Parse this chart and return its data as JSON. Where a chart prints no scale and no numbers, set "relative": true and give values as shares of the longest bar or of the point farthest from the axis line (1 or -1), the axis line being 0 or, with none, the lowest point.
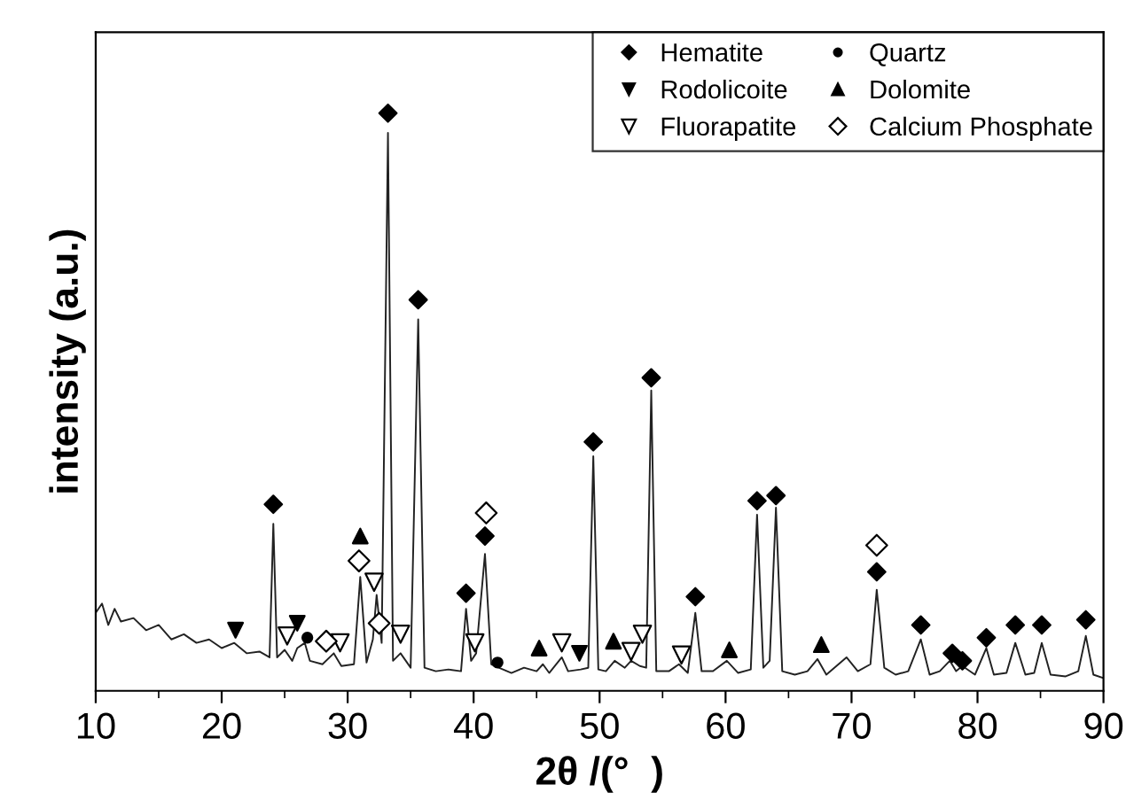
{
  "chart_data": {
    "type": "line",
    "relative": true,
    "xlabel": "2θ /(°  )",
    "ylabel": "intensity (a.u.)",
    "xlim": [
      10,
      90
    ],
    "xticks": [
      10,
      20,
      30,
      40,
      50,
      60,
      70,
      80,
      90
    ],
    "tick_labels": "x",
    "grid": false,
    "legend": "top right",
    "series": [
      {
        "color": "#222222",
        "marker": "none",
        "line_style": "solid",
        "x": [
          10,
          10.5,
          11,
          11.5,
          12,
          13,
          14,
          15,
          16,
          17,
          18,
          19,
          20,
          21,
          22,
          23,
          23.8,
          24.1,
          24.4,
          25,
          25.6,
          26,
          26.6,
          27,
          28,
          28.9,
          29.5,
          30.5,
          31.0,
          31.5,
          32.0,
          32.3,
          32.7,
          33.2,
          33.6,
          34.2,
          35.0,
          35.6,
          36.1,
          37,
          38,
          39,
          39.4,
          39.8,
          40.2,
          40.9,
          41.4,
          42,
          43,
          44,
          45,
          45.5,
          46,
          47,
          47.5,
          48.5,
          49.1,
          49.5,
          49.9,
          50.5,
          51.2,
          52,
          52.5,
          53.2,
          53.7,
          54.1,
          54.5,
          55.5,
          56.3,
          57,
          57.6,
          58.1,
          59,
          60.1,
          61,
          62,
          62.5,
          63.0,
          63.5,
          64.0,
          64.5,
          65.5,
          66.5,
          67.3,
          68,
          69.6,
          70.5,
          71.5,
          72.0,
          72.6,
          73.5,
          74.5,
          75.5,
          76.2,
          77,
          77.8,
          78.3,
          78.8,
          79.8,
          80.7,
          81.3,
          82.3,
          83.0,
          83.8,
          84.5,
          85.1,
          85.8,
          87,
          88,
          88.6,
          89.2,
          90
        ],
        "values": [
          0.135,
          0.151,
          0.114,
          0.142,
          0.12,
          0.126,
          0.105,
          0.114,
          0.089,
          0.098,
          0.083,
          0.089,
          0.074,
          0.083,
          0.065,
          0.068,
          0.058,
          0.289,
          0.058,
          0.071,
          0.052,
          0.074,
          0.083,
          0.052,
          0.046,
          0.065,
          0.043,
          0.046,
          0.197,
          0.049,
          0.089,
          0.166,
          0.083,
          0.966,
          0.052,
          0.065,
          0.04,
          0.643,
          0.04,
          0.034,
          0.037,
          0.034,
          0.142,
          0.052,
          0.065,
          0.237,
          0.046,
          0.04,
          0.031,
          0.04,
          0.034,
          0.046,
          0.031,
          0.058,
          0.034,
          0.037,
          0.04,
          0.406,
          0.037,
          0.034,
          0.052,
          0.04,
          0.052,
          0.043,
          0.04,
          0.52,
          0.034,
          0.034,
          0.046,
          0.031,
          0.135,
          0.034,
          0.034,
          0.052,
          0.031,
          0.037,
          0.305,
          0.04,
          0.052,
          0.317,
          0.034,
          0.028,
          0.034,
          0.055,
          0.028,
          0.058,
          0.034,
          0.046,
          0.175,
          0.04,
          0.028,
          0.034,
          0.089,
          0.028,
          0.034,
          0.052,
          0.034,
          0.043,
          0.028,
          0.074,
          0.028,
          0.031,
          0.083,
          0.028,
          0.031,
          0.083,
          0.028,
          0.025,
          0.034,
          0.095,
          0.028,
          0.022
        ]
      },
      {
        "type": "scatter",
        "name": "Hematite",
        "color": "#000000",
        "marker": "diamond",
        "x": [
          24.1,
          33.2,
          35.6,
          39.4,
          40.9,
          49.5,
          54.1,
          57.6,
          62.5,
          64.0,
          72.0,
          75.5,
          78.0,
          78.8,
          80.7,
          83.0,
          85.1,
          88.6
        ],
        "values": [
          0.323,
          1.0,
          0.677,
          0.169,
          0.268,
          0.431,
          0.542,
          0.163,
          0.329,
          0.338,
          0.206,
          0.114,
          0.065,
          0.052,
          0.092,
          0.114,
          0.114,
          0.123
        ]
      },
      {
        "type": "scatter",
        "name": "Rodolicoite",
        "color": "#000000",
        "marker": "triangle-down",
        "x": [
          21.1,
          26.0,
          48.4
        ],
        "values": [
          0.105,
          0.117,
          0.065
        ]
      },
      {
        "type": "scatter",
        "name": "Fluorapatite",
        "color": "#000000",
        "marker": "triangle-open",
        "x": [
          25.2,
          29.4,
          32.1,
          34.2,
          40.1,
          47.0,
          52.5,
          53.4,
          56.5
        ],
        "values": [
          0.095,
          0.083,
          0.188,
          0.098,
          0.083,
          0.083,
          0.068,
          0.098,
          0.062
        ]
      },
      {
        "type": "scatter",
        "name": "Quartz",
        "color": "#000000",
        "marker": "circle",
        "x": [
          26.8,
          41.9
        ],
        "values": [
          0.092,
          0.049
        ]
      },
      {
        "type": "scatter",
        "name": "Dolomite",
        "color": "#000000",
        "marker": "triangle",
        "x": [
          31.0,
          45.2,
          51.1,
          60.3,
          67.6
        ],
        "values": [
          0.268,
          0.074,
          0.086,
          0.071,
          0.08
        ]
      },
      {
        "type": "scatter",
        "name": "Calcium Phosphate",
        "color": "#000000",
        "marker": "diamond-open",
        "x": [
          28.3,
          30.9,
          32.5,
          41.0,
          72.0
        ],
        "values": [
          0.086,
          0.225,
          0.117,
          0.308,
          0.252
        ]
      }
    ]
  }
}
